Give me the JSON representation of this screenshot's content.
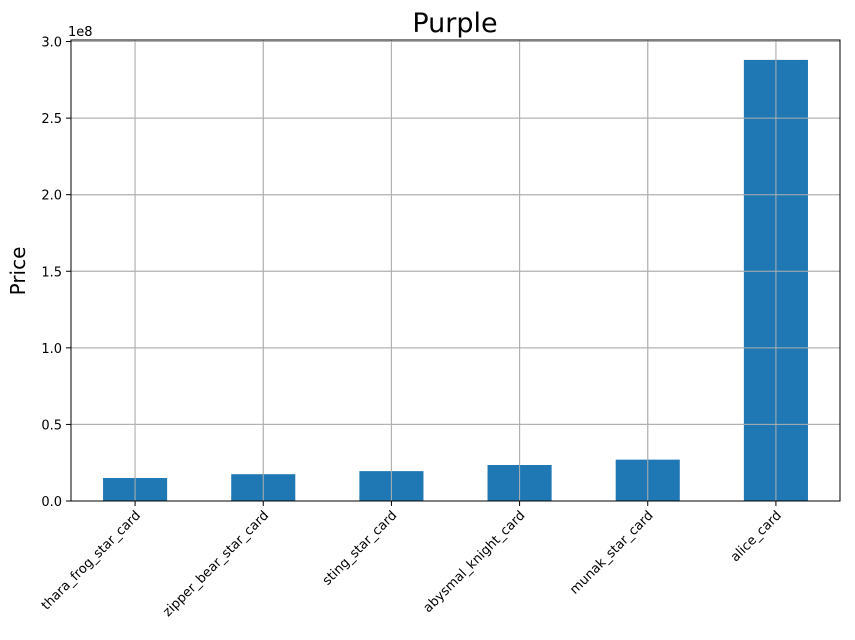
{
  "chart_data": {
    "type": "bar",
    "title": "Purple",
    "xlabel": "",
    "ylabel": "Price",
    "y_offset_label": "1e8",
    "categories": [
      "thara_frog_star_card",
      "zipper_bear_star_card",
      "sting_star_card",
      "abysmal_knight_card",
      "munak_star_card",
      "alice_card"
    ],
    "values": [
      15000000,
      17500000,
      19500000,
      23500000,
      27000000,
      288000000
    ],
    "ylim": [
      0,
      301000000
    ],
    "yticks": [
      {
        "value": 0,
        "label": "0.0"
      },
      {
        "value": 50000000,
        "label": "0.5"
      },
      {
        "value": 100000000,
        "label": "1.0"
      },
      {
        "value": 150000000,
        "label": "1.5"
      },
      {
        "value": 200000000,
        "label": "2.0"
      },
      {
        "value": 250000000,
        "label": "2.5"
      },
      {
        "value": 300000000,
        "label": "3.0"
      }
    ],
    "grid": true,
    "bar_color": "#1f77b4",
    "grid_color": "#b0b0b0"
  }
}
